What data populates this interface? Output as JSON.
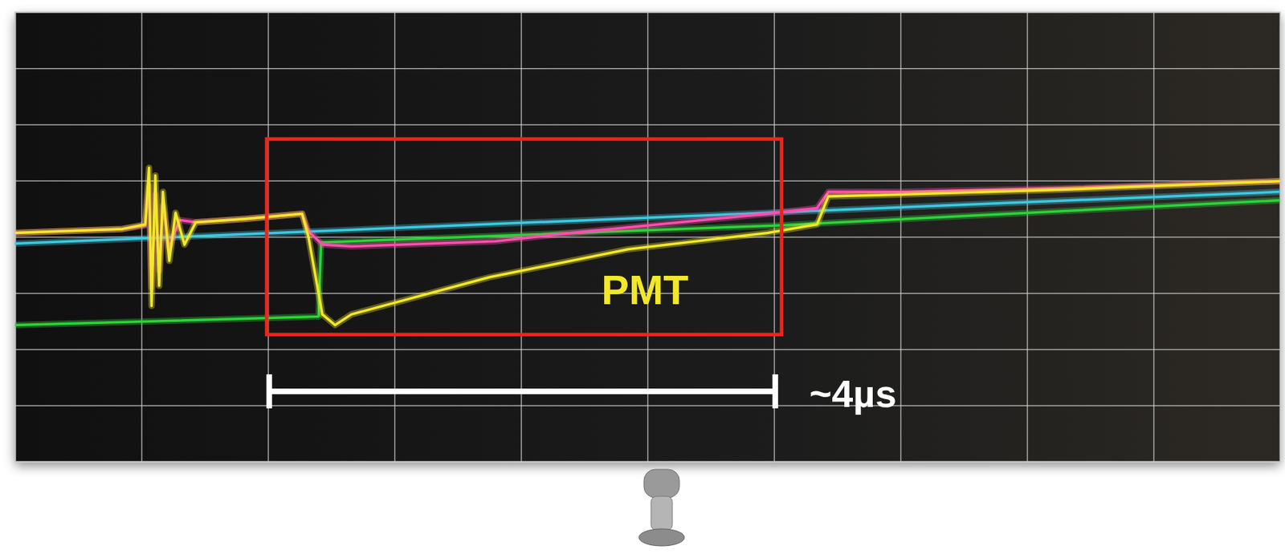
{
  "chart_data": {
    "type": "line",
    "xlim": [
      0,
      10
    ],
    "ylim": [
      -4,
      4
    ],
    "xticks": [
      1,
      2,
      3,
      4,
      5,
      6,
      7,
      8,
      9
    ],
    "yticks": [
      -3,
      -2,
      -1,
      0,
      1,
      2,
      3
    ],
    "grid": true,
    "tick_labels": false,
    "series": [
      {
        "color": "#3ec8e0",
        "x": [
          0,
          10
        ],
        "values": [
          -0.12,
          0.8
        ]
      },
      {
        "color": "#2fd13a",
        "x": [
          0,
          2.4,
          2.42,
          6.0,
          10
        ],
        "values": [
          -1.57,
          -1.42,
          -0.1,
          0.2,
          0.65
        ]
      },
      {
        "color": "#ff4fb0",
        "x": [
          0,
          0.85,
          1.03,
          1.06,
          1.08,
          1.11,
          1.14,
          1.17,
          1.22,
          1.3,
          1.43,
          1.82,
          2.27,
          2.32,
          2.43,
          2.66,
          3.8,
          4.4,
          5.95,
          6.34,
          6.43,
          6.98,
          8.27,
          10
        ],
        "values": [
          0.07,
          0.14,
          0.2,
          0.9,
          -0.9,
          0.75,
          -0.6,
          0.55,
          -0.2,
          0.3,
          0.26,
          0.32,
          0.41,
          0.1,
          -0.14,
          -0.17,
          -0.08,
          0.07,
          0.41,
          0.51,
          0.8,
          0.8,
          0.86,
          0.99
        ]
      },
      {
        "color": "#f2e82a",
        "x": [
          0,
          0.85,
          1.03,
          1.06,
          1.08,
          1.11,
          1.14,
          1.17,
          1.22,
          1.27,
          1.34,
          1.43,
          1.82,
          2.27,
          2.32,
          2.43,
          2.53,
          2.66,
          3.75,
          4.85,
          5.95,
          6.34,
          6.43,
          6.98,
          8.27,
          10
        ],
        "values": [
          0.07,
          0.14,
          0.22,
          1.23,
          -1.23,
          1.09,
          -0.87,
          0.8,
          -0.43,
          0.43,
          -0.14,
          0.26,
          0.32,
          0.41,
          0,
          -1.38,
          -1.57,
          -1.38,
          -0.72,
          -0.22,
          0.07,
          0.22,
          0.72,
          0.75,
          0.84,
          0.99
        ]
      }
    ],
    "highlight_box": {
      "x": [
        1.99,
        6.06
      ],
      "y": [
        -1.74,
        1.74
      ],
      "color": "#e8271c"
    },
    "annotations": [
      {
        "text": "PMT",
        "x": 4.98,
        "y": -0.94,
        "color": "#f2e82a"
      },
      {
        "text": "~4µs",
        "x_start": 2.01,
        "x_end": 6.01,
        "y": -2.75,
        "color": "#ffffff"
      }
    ]
  }
}
